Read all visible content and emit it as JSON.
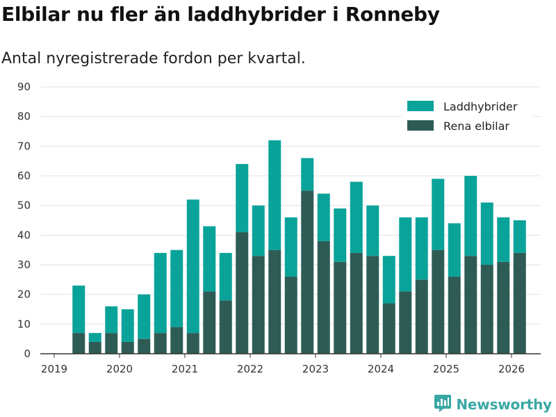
{
  "chart_data": {
    "type": "bar",
    "stacked": true,
    "title": "Elbilar nu fler än laddhybrider i Ronneby",
    "subtitle": "Antal nyregistrerade fordon per kvartal.",
    "xlabel": "",
    "ylabel": "",
    "ylim": [
      0,
      90
    ],
    "y_ticks": [
      0,
      10,
      20,
      30,
      40,
      50,
      60,
      70,
      80,
      90
    ],
    "x_ticks": [
      "2019",
      "2020",
      "2021",
      "2022",
      "2023",
      "2024",
      "2025",
      "2026"
    ],
    "grid": true,
    "legend_position": "top-right",
    "categories": [
      "2019 Q2",
      "2019 Q3",
      "2019 Q4",
      "2020 Q1",
      "2020 Q2",
      "2020 Q3",
      "2020 Q4",
      "2021 Q1",
      "2021 Q2",
      "2021 Q3",
      "2021 Q4",
      "2022 Q1",
      "2022 Q2",
      "2022 Q3",
      "2022 Q4",
      "2023 Q1",
      "2023 Q2",
      "2023 Q3",
      "2023 Q4",
      "2024 Q1",
      "2024 Q2",
      "2024 Q3",
      "2024 Q4",
      "2025 Q1",
      "2025 Q2",
      "2025 Q3",
      "2025 Q4",
      "2026 Q1"
    ],
    "series": [
      {
        "name": "Rena elbilar",
        "color": "#2e5c55",
        "values": [
          7,
          4,
          7,
          4,
          5,
          7,
          9,
          7,
          21,
          18,
          41,
          33,
          35,
          26,
          55,
          38,
          31,
          34,
          33,
          17,
          21,
          25,
          35,
          26,
          33,
          30,
          31,
          34
        ]
      },
      {
        "name": "Laddhybrider",
        "color": "#0aa39a",
        "values": [
          16,
          3,
          9,
          11,
          15,
          27,
          26,
          45,
          22,
          16,
          23,
          17,
          37,
          20,
          11,
          16,
          18,
          24,
          17,
          16,
          25,
          21,
          24,
          18,
          27,
          21,
          15,
          11
        ]
      }
    ],
    "legend_order": [
      "Laddhybrider",
      "Rena elbilar"
    ]
  },
  "brand": {
    "name": "Newsworthy",
    "color": "#3aa7a3",
    "icon": "newsworthy-logo-icon"
  }
}
